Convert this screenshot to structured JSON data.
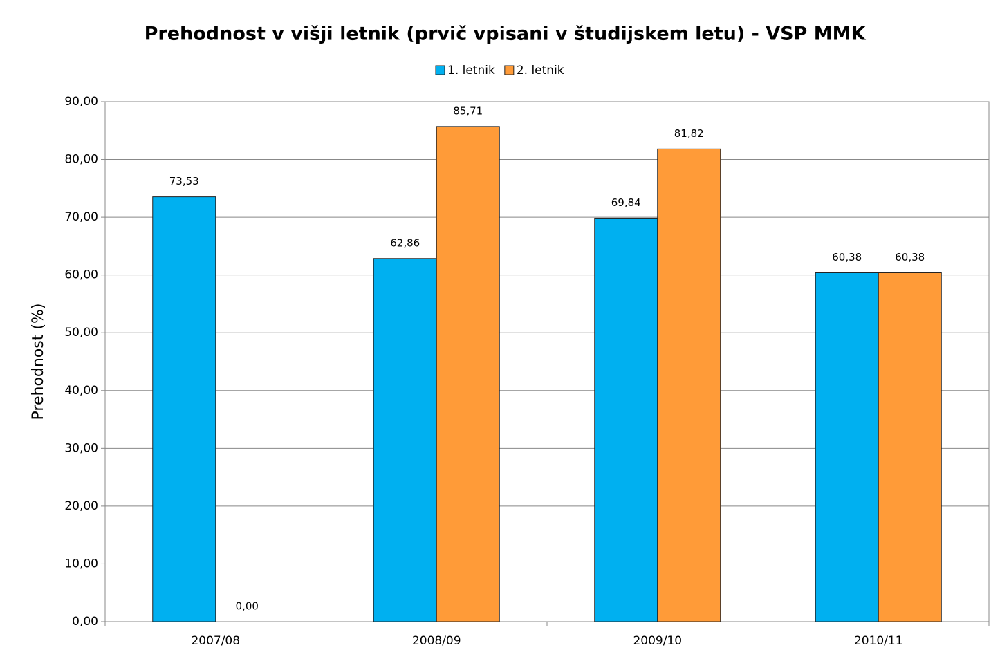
{
  "chart_data": {
    "type": "bar",
    "title": "Prehodnost v višji letnik (prvič vpisani v študijskem letu) - VSP MMK",
    "y_label": "Prehodnost (%)",
    "categories": [
      "2007/08",
      "2008/09",
      "2009/10",
      "2010/11"
    ],
    "series": [
      {
        "name": "1. letnik",
        "color": "#00b0f0",
        "values": [
          73.53,
          62.86,
          69.84,
          60.38
        ],
        "value_labels": [
          "73,53",
          "62,86",
          "69,84",
          "60,38"
        ]
      },
      {
        "name": "2. letnik",
        "color": "#ff9b38",
        "values": [
          0,
          85.71,
          81.82,
          60.38
        ],
        "value_labels": [
          "0,00",
          "85,71",
          "81,82",
          "60,38"
        ]
      }
    ],
    "ylim": [
      0,
      90
    ],
    "yticks": [
      {
        "value": 0,
        "label": "0,00"
      },
      {
        "value": 10,
        "label": "10,00"
      },
      {
        "value": 20,
        "label": "20,00"
      },
      {
        "value": 30,
        "label": "30,00"
      },
      {
        "value": 40,
        "label": "40,00"
      },
      {
        "value": 50,
        "label": "50,00"
      },
      {
        "value": 60,
        "label": "60,00"
      },
      {
        "value": 70,
        "label": "70,00"
      },
      {
        "value": 80,
        "label": "80,00"
      },
      {
        "value": 90,
        "label": "90,00"
      }
    ],
    "grid": true,
    "legend": "top"
  }
}
